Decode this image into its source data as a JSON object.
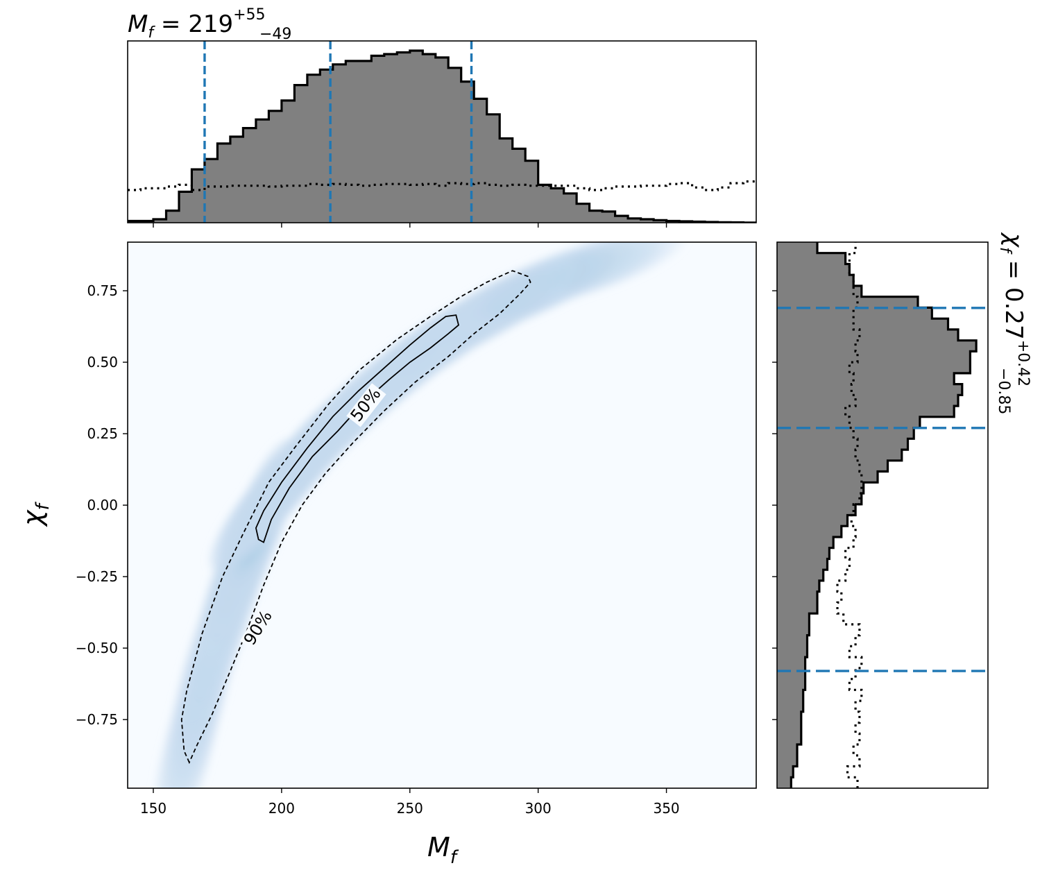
{
  "chart_data": [
    {
      "type": "heatmap",
      "panel": "joint",
      "xlabel_base": "M",
      "xlabel_sub": "f",
      "ylabel_base": "χ",
      "ylabel_sub": "f",
      "xlim": [
        140,
        385
      ],
      "ylim": [
        -0.99,
        0.92
      ],
      "x_ticks": [
        150,
        200,
        250,
        300,
        350
      ],
      "x_tick_labels": [
        "150",
        "200",
        "250",
        "300",
        "350"
      ],
      "y_ticks": [
        0.75,
        0.5,
        0.25,
        0.0,
        -0.25,
        -0.5,
        -0.75
      ],
      "y_tick_labels": [
        "0.75",
        "0.50",
        "0.25",
        "0.00",
        "−0.25",
        "−0.50",
        "−0.75"
      ],
      "colormap": [
        "#f7fbff",
        "#deebf7",
        "#c6dbef",
        "#9ecae1",
        "#6baed6",
        "#4292c6",
        "#2171b5",
        "#08519c",
        "#08306b"
      ],
      "density_ridge": {
        "x": [
          162,
          172,
          183,
          194,
          206,
          218,
          230,
          242,
          255,
          270,
          290,
          310,
          330
        ],
        "y": [
          -0.9,
          -0.55,
          -0.25,
          0.0,
          0.13,
          0.25,
          0.35,
          0.44,
          0.53,
          0.62,
          0.72,
          0.8,
          0.86
        ]
      },
      "contours": [
        {
          "label": "50%",
          "style": "solid",
          "label_position": [
            233,
            0.35
          ],
          "label_angle": -52,
          "points": [
            [
              191,
              -0.12
            ],
            [
              190,
              -0.08
            ],
            [
              193,
              -0.02
            ],
            [
              200,
              0.08
            ],
            [
              210,
              0.2
            ],
            [
              220,
              0.31
            ],
            [
              230,
              0.4
            ],
            [
              240,
              0.48
            ],
            [
              250,
              0.56
            ],
            [
              258,
              0.62
            ],
            [
              264,
              0.66
            ],
            [
              268,
              0.665
            ],
            [
              269,
              0.63
            ],
            [
              265,
              0.6
            ],
            [
              258,
              0.55
            ],
            [
              250,
              0.5
            ],
            [
              242,
              0.44
            ],
            [
              232,
              0.36
            ],
            [
              222,
              0.26
            ],
            [
              212,
              0.17
            ],
            [
              203,
              0.06
            ],
            [
              196,
              -0.05
            ],
            [
              193,
              -0.13
            ],
            [
              191,
              -0.12
            ]
          ]
        },
        {
          "label": "90%",
          "style": "dashed",
          "label_position": [
            191,
            -0.43
          ],
          "label_angle": -58,
          "points": [
            [
              164,
              -0.9
            ],
            [
              162,
              -0.86
            ],
            [
              161,
              -0.75
            ],
            [
              163,
              -0.65
            ],
            [
              169,
              -0.45
            ],
            [
              177,
              -0.25
            ],
            [
              185,
              -0.1
            ],
            [
              195,
              0.08
            ],
            [
              205,
              0.2
            ],
            [
              218,
              0.35
            ],
            [
              230,
              0.47
            ],
            [
              245,
              0.58
            ],
            [
              258,
              0.66
            ],
            [
              270,
              0.73
            ],
            [
              280,
              0.78
            ],
            [
              290,
              0.82
            ],
            [
              296,
              0.8
            ],
            [
              297,
              0.78
            ],
            [
              293,
              0.74
            ],
            [
              285,
              0.67
            ],
            [
              275,
              0.6
            ],
            [
              265,
              0.52
            ],
            [
              252,
              0.43
            ],
            [
              240,
              0.33
            ],
            [
              228,
              0.22
            ],
            [
              217,
              0.11
            ],
            [
              208,
              0.0
            ],
            [
              200,
              -0.13
            ],
            [
              193,
              -0.28
            ],
            [
              186,
              -0.45
            ],
            [
              180,
              -0.58
            ],
            [
              173,
              -0.73
            ],
            [
              167,
              -0.84
            ],
            [
              164,
              -0.9
            ]
          ]
        }
      ]
    },
    {
      "type": "bar",
      "panel": "marginal_top",
      "title_base": "M",
      "title_sub": "f",
      "title_value": " = 219",
      "title_sup": "+55",
      "title_lower": "−49",
      "x_start": 140,
      "bin_width": 5,
      "posterior_values": [
        0.01,
        0.01,
        0.02,
        0.07,
        0.18,
        0.31,
        0.37,
        0.46,
        0.5,
        0.55,
        0.6,
        0.65,
        0.71,
        0.8,
        0.86,
        0.89,
        0.92,
        0.94,
        0.94,
        0.97,
        0.98,
        0.99,
        1.0,
        0.98,
        0.96,
        0.9,
        0.82,
        0.72,
        0.63,
        0.49,
        0.43,
        0.36,
        0.22,
        0.2,
        0.17,
        0.11,
        0.07,
        0.065,
        0.04,
        0.025,
        0.02,
        0.015,
        0.01,
        0.008,
        0.006,
        0.004,
        0.003,
        0.002,
        0.001
      ],
      "prior_values": [
        0.19,
        0.2,
        0.2,
        0.21,
        0.22,
        0.19,
        0.21,
        0.21,
        0.215,
        0.215,
        0.215,
        0.21,
        0.215,
        0.215,
        0.225,
        0.22,
        0.225,
        0.22,
        0.215,
        0.22,
        0.225,
        0.225,
        0.22,
        0.225,
        0.215,
        0.23,
        0.225,
        0.23,
        0.22,
        0.215,
        0.22,
        0.215,
        0.215,
        0.215,
        0.215,
        0.2,
        0.19,
        0.2,
        0.21,
        0.21,
        0.215,
        0.215,
        0.225,
        0.23,
        0.205,
        0.19,
        0.205,
        0.23,
        0.24
      ],
      "median_line": 219,
      "interval_lines": [
        170,
        274
      ],
      "x_ticks": [
        150,
        200,
        250,
        300,
        350
      ]
    },
    {
      "type": "bar",
      "panel": "marginal_right",
      "title_base": "χ",
      "title_sub": "f",
      "title_value": " = 0.27",
      "title_sup": "+0.42",
      "title_lower": "−0.85",
      "y_start": -0.99,
      "bin_width": 0.0382,
      "posterior_values": [
        0.07,
        0.08,
        0.1,
        0.1,
        0.12,
        0.12,
        0.12,
        0.13,
        0.13,
        0.14,
        0.14,
        0.14,
        0.15,
        0.15,
        0.16,
        0.16,
        0.2,
        0.2,
        0.21,
        0.23,
        0.25,
        0.26,
        0.28,
        0.32,
        0.35,
        0.39,
        0.42,
        0.43,
        0.5,
        0.55,
        0.62,
        0.65,
        0.68,
        0.71,
        0.88,
        0.9,
        0.92,
        0.88,
        0.96,
        0.96,
        0.99,
        0.9,
        0.85,
        0.77,
        0.7,
        0.42,
        0.38,
        0.36,
        0.34,
        0.2,
        0.2,
        0.16,
        0.15,
        0.12
      ],
      "prior_values": [
        0.4,
        0.35,
        0.41,
        0.38,
        0.41,
        0.39,
        0.41,
        0.39,
        0.42,
        0.36,
        0.39,
        0.42,
        0.36,
        0.39,
        0.41,
        0.33,
        0.3,
        0.32,
        0.3,
        0.34,
        0.36,
        0.34,
        0.38,
        0.39,
        0.37,
        0.38,
        0.41,
        0.42,
        0.42,
        0.41,
        0.39,
        0.4,
        0.38,
        0.36,
        0.34,
        0.39,
        0.37,
        0.38,
        0.36,
        0.4,
        0.39,
        0.41,
        0.38,
        0.38,
        0.4,
        0.38,
        0.38,
        0.36,
        0.36,
        0.39,
        0.39,
        0.38,
        0.37,
        0.39
      ],
      "median_line": 0.27,
      "interval_lines": [
        -0.58,
        0.69
      ],
      "y_ticks": [
        0.75,
        0.5,
        0.25,
        0.0,
        -0.25,
        -0.5,
        -0.75
      ]
    }
  ],
  "colors": {
    "posterior_fill": "#808080",
    "posterior_edge": "#000000",
    "prior_line": "#000000",
    "credible_lines": "#1f77b4",
    "contour_line": "#000000",
    "background": "#f7fbff"
  }
}
